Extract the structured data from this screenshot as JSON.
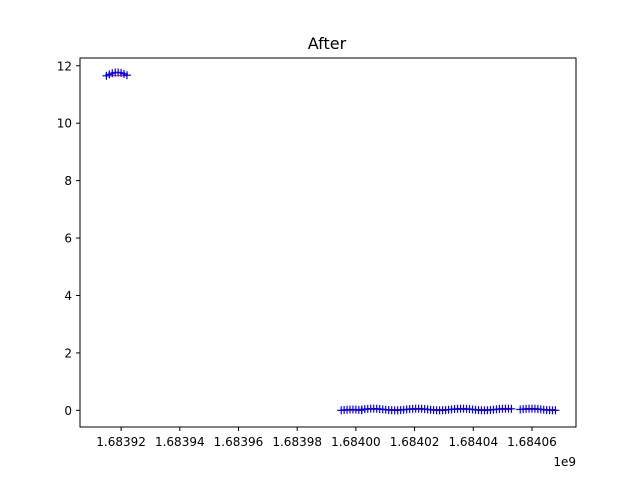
{
  "chart_data": {
    "type": "scatter",
    "title": "After",
    "xlabel": "",
    "ylabel": "",
    "x_offset_label": "1e9",
    "xlim": [
      1.683906,
      1.684075
    ],
    "ylim": [
      -0.58,
      12.27
    ],
    "x_ticks": [
      1.68392,
      1.68394,
      1.68396,
      1.68398,
      1.684,
      1.68402,
      1.68404,
      1.68406
    ],
    "x_tick_labels": [
      "1.68392",
      "1.68394",
      "1.68396",
      "1.68398",
      "1.68400",
      "1.68402",
      "1.68404",
      "1.68406"
    ],
    "y_ticks": [
      0,
      2,
      4,
      6,
      8,
      10,
      12
    ],
    "y_tick_labels": [
      "0",
      "2",
      "4",
      "6",
      "8",
      "10",
      "12"
    ],
    "grid": false,
    "legend": "none",
    "series": [
      {
        "marker": "+",
        "color": "#0000ff",
        "line_color": "#ff0000",
        "clusters": [
          {
            "x_start": 1.683915,
            "x_end": 1.683922,
            "y": 11.65,
            "y_spread": 0.12
          },
          {
            "x_start": 1.683995,
            "x_end": 1.684002,
            "y": 0.0,
            "y_spread": 0.03
          },
          {
            "x_start": 1.684002,
            "x_end": 1.684053,
            "y": 0.03,
            "y_spread": 0.03
          },
          {
            "x_start": 1.684056,
            "x_end": 1.684068,
            "y": 0.03,
            "y_spread": 0.03
          }
        ]
      }
    ]
  }
}
